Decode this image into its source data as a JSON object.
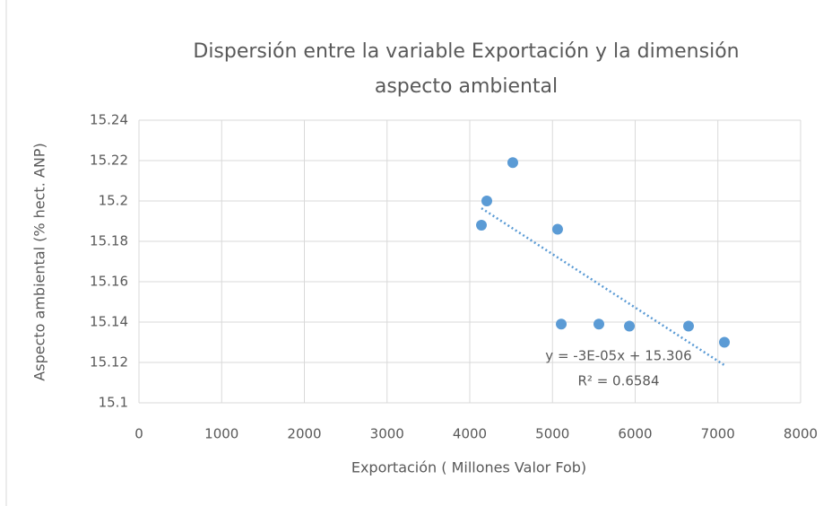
{
  "chart_data": {
    "type": "scatter",
    "title": [
      "Dispersión entre la variable Exportación y la dimensión",
      "aspecto ambiental"
    ],
    "x_label": "Exportación ( Millones Valor Fob)",
    "y_label": "Aspecto ambiental (% hect. ANP)",
    "series": [
      {
        "name": "Aspecto ambiental",
        "color": "#5b9bd5",
        "x": [
          4141,
          4206,
          4520,
          5062,
          5106,
          5561,
          5930,
          6645,
          7079
        ],
        "values": [
          15.188,
          15.2,
          15.219,
          15.186,
          15.139,
          15.139,
          15.138,
          15.138,
          15.13
        ]
      }
    ],
    "trendline": {
      "type": "linear",
      "color": "#5b9bd5",
      "equation": "y = -3E-05x + 15.306",
      "r_squared": "R² = 0.6584"
    },
    "xlim": [
      0,
      8000
    ],
    "xticks": [
      0,
      1000,
      2000,
      3000,
      4000,
      5000,
      6000,
      7000,
      8000
    ],
    "ylim": [
      15.1,
      15.24
    ],
    "yticks": [
      15.1,
      15.12,
      15.14,
      15.16,
      15.18,
      15.2,
      15.22,
      15.24
    ],
    "grid": true
  }
}
